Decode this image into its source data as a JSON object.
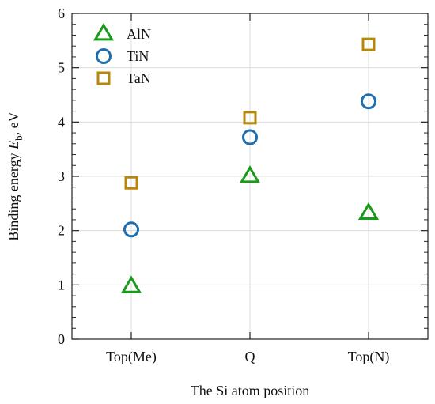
{
  "chart_data": {
    "type": "scatter",
    "xlabel": "The Si atom position",
    "ylabel": "Binding energy ",
    "ylabel_sym": "E",
    "ylabel_sub": "b",
    "ylabel_unit": ", eV",
    "categories": [
      "Top(Me)",
      "Q",
      "Top(N)"
    ],
    "ylim": [
      0,
      6
    ],
    "yticks": [
      0,
      1,
      2,
      3,
      4,
      5,
      6
    ],
    "grid": true,
    "legend_position": "top-left",
    "series": [
      {
        "name": "AlN",
        "marker": "triangle",
        "color": "#1a9a1a",
        "values": [
          0.97,
          3.0,
          2.32
        ]
      },
      {
        "name": "TiN",
        "marker": "circle",
        "color": "#1f6fb0",
        "values": [
          2.02,
          3.72,
          4.38
        ]
      },
      {
        "name": "TaN",
        "marker": "square",
        "color": "#b8860b",
        "values": [
          2.88,
          4.08,
          5.43
        ]
      }
    ]
  }
}
